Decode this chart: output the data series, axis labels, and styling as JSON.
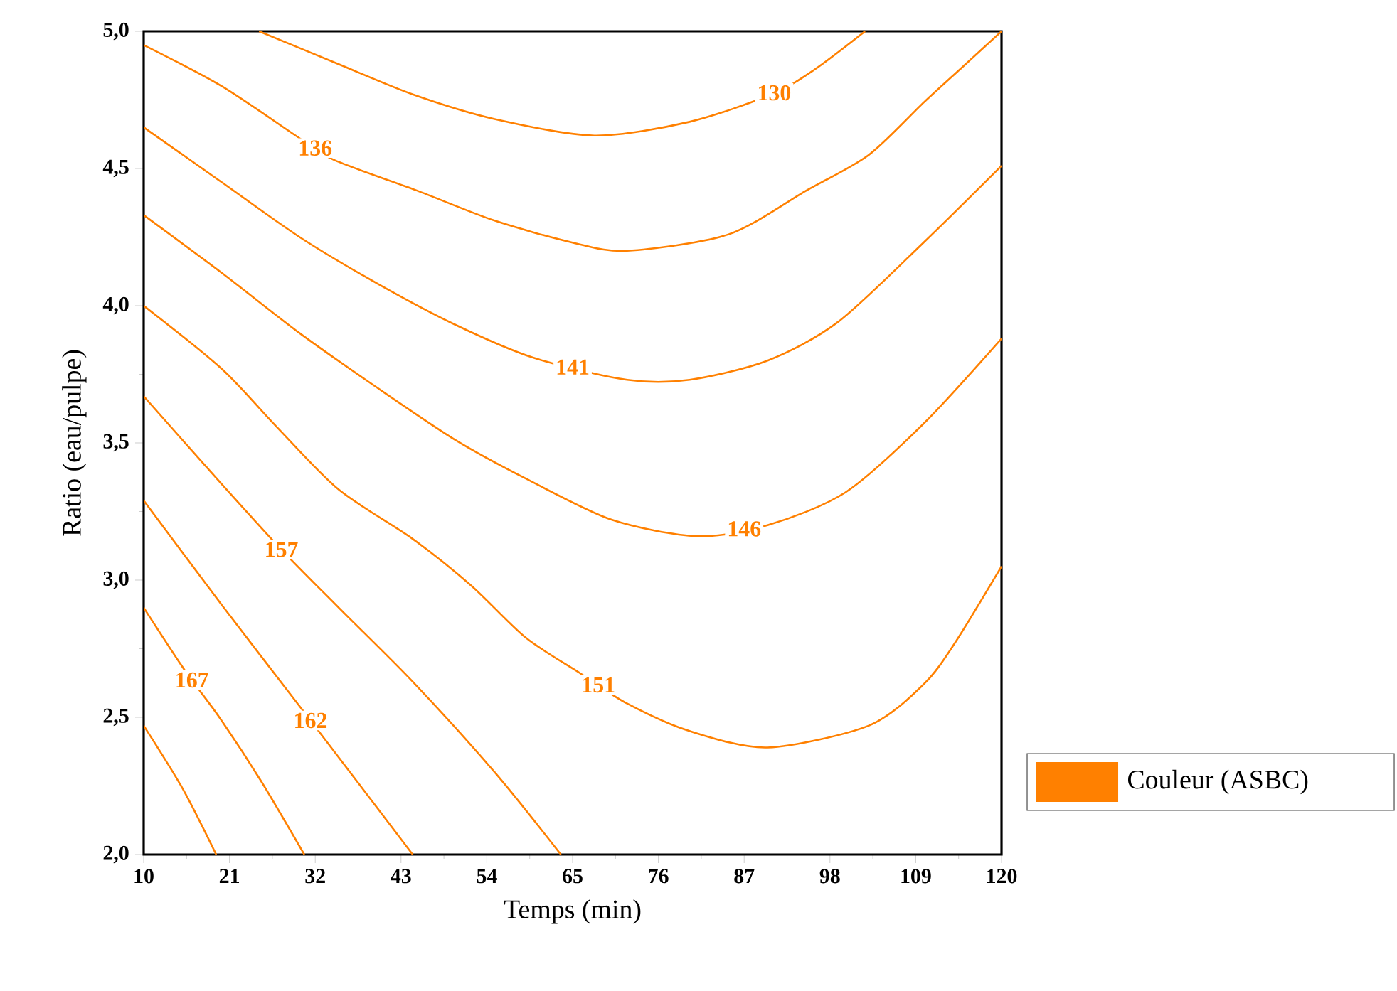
{
  "chart_data": {
    "type": "line",
    "xlabel": "Temps (min)",
    "ylabel": "Ratio (eau/pulpe)",
    "legend_title": "Couleur (ASBC)",
    "marker": "none",
    "line_style": "solid",
    "grid": false,
    "xlim": [
      10,
      120
    ],
    "xticks": [
      10,
      21,
      32,
      43,
      54,
      65,
      76,
      87,
      98,
      109,
      120
    ],
    "ylim": [
      2.0,
      5.0
    ],
    "yticks": [
      {
        "value": 2.0,
        "label": "2,0"
      },
      {
        "value": 2.5,
        "label": "2,5"
      },
      {
        "value": 3.0,
        "label": "3,0"
      },
      {
        "value": 3.5,
        "label": "3,5"
      },
      {
        "value": 4.0,
        "label": "4,0"
      },
      {
        "value": 4.5,
        "label": "4,5"
      },
      {
        "value": 5.0,
        "label": "5,0"
      }
    ],
    "series": [
      {
        "name": "130",
        "color": "#ff8000",
        "x": [
          24.8,
          35,
          44.5,
          55,
          67.8,
          80,
          90.5,
          96,
          102.5
        ],
        "values": [
          5.0,
          4.88,
          4.77,
          4.68,
          4.62,
          4.67,
          4.77,
          4.86,
          5.0
        ]
      },
      {
        "name": "136",
        "color": "#ff8000",
        "x": [
          10,
          20,
          30,
          34.5,
          45,
          55,
          65,
          72,
          85,
          95,
          103,
          110,
          115,
          120
        ],
        "values": [
          4.95,
          4.8,
          4.61,
          4.53,
          4.42,
          4.31,
          4.23,
          4.2,
          4.26,
          4.42,
          4.55,
          4.74,
          4.87,
          5.0
        ]
      },
      {
        "name": "141",
        "color": "#ff8000",
        "x": [
          10,
          20,
          30,
          40,
          50,
          60,
          72,
          80,
          90,
          99,
          110,
          120
        ],
        "values": [
          4.65,
          4.45,
          4.25,
          4.08,
          3.93,
          3.81,
          3.73,
          3.73,
          3.8,
          3.94,
          4.23,
          4.51
        ]
      },
      {
        "name": "146",
        "color": "#ff8000",
        "x": [
          10,
          20,
          30,
          40,
          50,
          59,
          70,
          81,
          90,
          100,
          110,
          120
        ],
        "values": [
          4.33,
          4.12,
          3.9,
          3.7,
          3.51,
          3.37,
          3.22,
          3.16,
          3.2,
          3.32,
          3.57,
          3.88
        ]
      },
      {
        "name": "151",
        "color": "#ff8000",
        "x": [
          10,
          20,
          27,
          35,
          44.5,
          52,
          59,
          66,
          72,
          80,
          90,
          103,
          110,
          114,
          120
        ],
        "values": [
          4.0,
          3.77,
          3.56,
          3.33,
          3.15,
          2.98,
          2.79,
          2.66,
          2.55,
          2.45,
          2.39,
          2.47,
          2.62,
          2.77,
          3.05
        ]
      },
      {
        "name": "157",
        "color": "#ff8000",
        "x": [
          10,
          20,
          27.7,
          35,
          44.5,
          55,
          63.5
        ],
        "values": [
          3.67,
          3.35,
          3.11,
          2.9,
          2.63,
          2.3,
          2.0
        ]
      },
      {
        "name": "162",
        "color": "#ff8000",
        "x": [
          10,
          20,
          30,
          37,
          44.5
        ],
        "values": [
          3.29,
          2.91,
          2.54,
          2.28,
          2.0
        ]
      },
      {
        "name": "167",
        "color": "#ff8000",
        "x": [
          10,
          15.3,
          19.7,
          25,
          30.6
        ],
        "values": [
          2.9,
          2.67,
          2.5,
          2.27,
          2.0
        ]
      },
      {
        "color": "#ff8000",
        "x": [
          10,
          15,
          19.3
        ],
        "values": [
          2.47,
          2.24,
          2.0
        ]
      }
    ]
  }
}
